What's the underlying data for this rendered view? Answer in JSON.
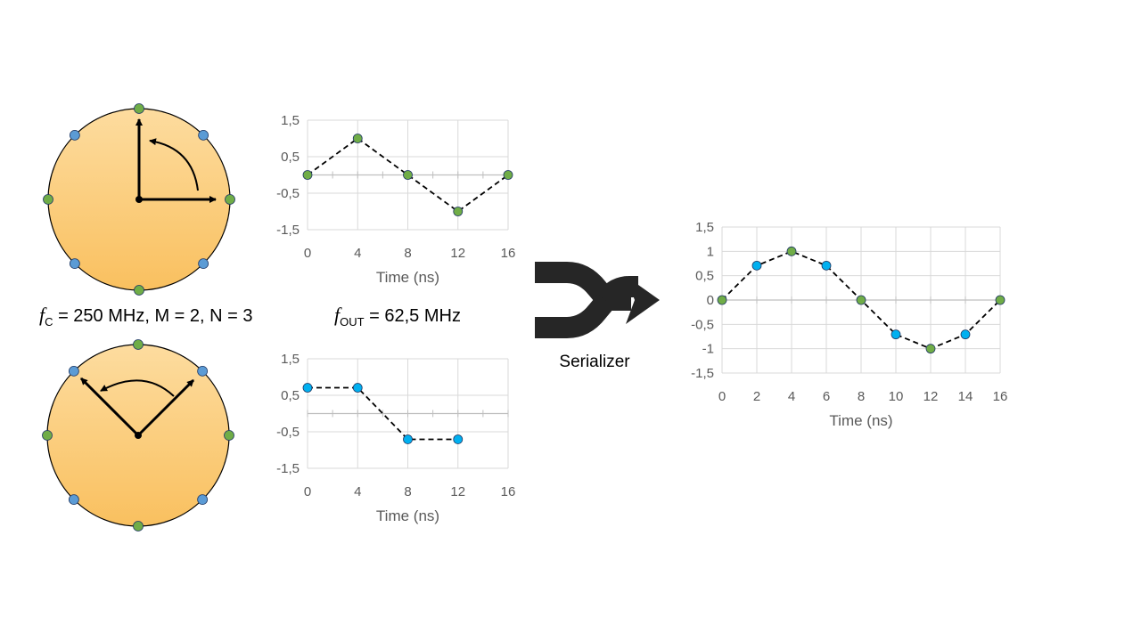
{
  "labels": {
    "fc_var": "f",
    "fc_sub": "C",
    "fc_rest": " = 250 MHz, M = 2, N = 3",
    "fout_var": "f",
    "fout_sub": "OUT",
    "fout_rest": " = 62,5 MHz",
    "serializer": "Serializer"
  },
  "colors": {
    "disk_light": "#fddc9f",
    "disk_dark": "#f9c05f",
    "green": "#70ad47",
    "blue": "#5b9bd5",
    "cyan": "#00b0f0",
    "arrow": "#262626"
  },
  "clocks": [
    {
      "name": "top",
      "dots": [
        "green",
        "blue",
        "green",
        "blue",
        "green",
        "blue",
        "green",
        "blue"
      ]
    },
    {
      "name": "bottom",
      "dots": [
        "green",
        "blue",
        "green",
        "blue",
        "green",
        "blue",
        "green",
        "blue"
      ]
    }
  ],
  "chart_data": [
    {
      "type": "line",
      "xlabel": "Time (ns)",
      "ylabel": "",
      "x_ticks": [
        "0",
        "4",
        "8",
        "12",
        "16"
      ],
      "y_ticks": [
        "1,5",
        "0,5",
        "-0,5",
        "-1,5"
      ],
      "xlim": [
        0,
        16
      ],
      "ylim": [
        -1.5,
        1.5
      ],
      "grid": true,
      "series": [
        {
          "x": [
            0,
            4,
            8,
            12,
            16
          ],
          "y": [
            0,
            1,
            0,
            -1,
            0
          ],
          "colors": [
            "green",
            "green",
            "green",
            "green",
            "green"
          ]
        }
      ]
    },
    {
      "type": "line",
      "xlabel": "Time (ns)",
      "ylabel": "",
      "x_ticks": [
        "0",
        "4",
        "8",
        "12",
        "16"
      ],
      "y_ticks": [
        "1,5",
        "0,5",
        "-0,5",
        "-1,5"
      ],
      "xlim": [
        0,
        16
      ],
      "ylim": [
        -1.5,
        1.5
      ],
      "grid": true,
      "series": [
        {
          "x": [
            0,
            4,
            8,
            12
          ],
          "y": [
            0.707,
            0.707,
            -0.707,
            -0.707
          ],
          "colors": [
            "cyan",
            "cyan",
            "cyan",
            "cyan"
          ]
        }
      ]
    },
    {
      "type": "line",
      "xlabel": "Time (ns)",
      "ylabel": "",
      "x_ticks": [
        "0",
        "2",
        "4",
        "6",
        "8",
        "10",
        "12",
        "14",
        "16"
      ],
      "y_ticks": [
        "1,5",
        "1",
        "0,5",
        "0",
        "-0,5",
        "-1",
        "-1,5"
      ],
      "xlim": [
        0,
        16
      ],
      "ylim": [
        -1.5,
        1.5
      ],
      "grid": true,
      "series": [
        {
          "x": [
            0,
            2,
            4,
            6,
            8,
            10,
            12,
            14,
            16
          ],
          "y": [
            0,
            0.707,
            1,
            0.707,
            0,
            -0.707,
            -1,
            -0.707,
            0
          ],
          "colors": [
            "green",
            "cyan",
            "green",
            "cyan",
            "green",
            "cyan",
            "green",
            "cyan",
            "green"
          ]
        }
      ]
    }
  ]
}
